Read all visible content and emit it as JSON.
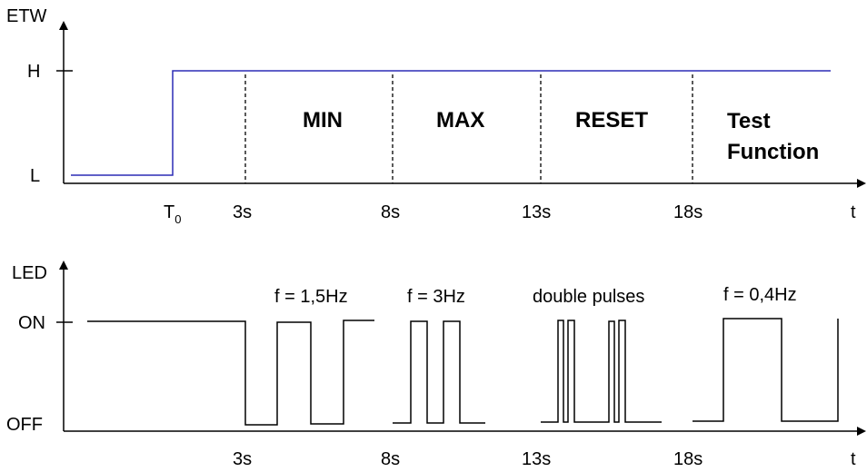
{
  "etw_chart": {
    "y_axis_label": "ETW",
    "x_axis_label": "t",
    "y_levels": {
      "high": "H",
      "low": "L"
    },
    "t0_label": "T",
    "t0_subscript": "0",
    "time_ticks": [
      "3s",
      "8s",
      "13s",
      "18s"
    ],
    "phases": {
      "min": "MIN",
      "max": "MAX",
      "reset": "RESET",
      "test_line1": "Test",
      "test_line2": "Function"
    },
    "signal_color": "#2b2bb5"
  },
  "led_chart": {
    "y_axis_label": "LED",
    "x_axis_label": "t",
    "y_levels": {
      "on": "ON",
      "off": "OFF"
    },
    "time_ticks": [
      "3s",
      "8s",
      "13s",
      "18s"
    ],
    "annotations": {
      "f_min": "f = 1,5Hz",
      "f_max": "f = 3Hz",
      "reset": "double pulses",
      "f_test": "f = 0,4Hz"
    }
  }
}
